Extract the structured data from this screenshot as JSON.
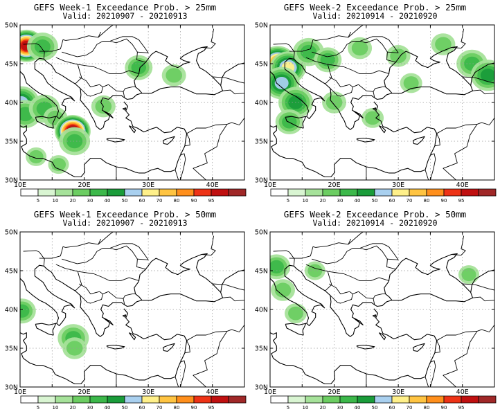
{
  "panels": [
    {
      "title": "GEFS Week-1 Exceedance Prob. > 25mm",
      "valid": "Valid: 20210907 - 20210913"
    },
    {
      "title": "GEFS Week-2 Exceedance Prob. > 25mm",
      "valid": "Valid: 20210914 - 20210920"
    },
    {
      "title": "GEFS Week-1 Exceedance Prob. > 50mm",
      "valid": "Valid: 20210907 - 20210913"
    },
    {
      "title": "GEFS Week-2 Exceedance Prob. > 50mm",
      "valid": "Valid: 20210914 - 20210920"
    }
  ],
  "axes": {
    "lat_labels": [
      "50N",
      "45N",
      "40N",
      "35N",
      "30N"
    ],
    "lon_labels": [
      "10E",
      "20E",
      "30E",
      "40E"
    ]
  },
  "colorbar": {
    "labels": [
      "5",
      "10",
      "20",
      "30",
      "40",
      "50",
      "60",
      "70",
      "80",
      "90",
      "95"
    ],
    "colors": [
      "#ffffff",
      "#d9f5d2",
      "#a6e29a",
      "#6ccd62",
      "#3cb84a",
      "#1a9c3a",
      "#a9d0ef",
      "#fff08a",
      "#ffc442",
      "#ff8f1c",
      "#ee3316",
      "#c01010",
      "#a02828"
    ]
  },
  "fields": [
    [
      {
        "lon": 10.2,
        "lat": 40.0,
        "v": 45
      },
      {
        "lon": 10.8,
        "lat": 38.5,
        "v": 25
      },
      {
        "lon": 13.8,
        "lat": 39.2,
        "v": 25
      },
      {
        "lon": 15.5,
        "lat": 38.0,
        "v": 15
      },
      {
        "lon": 18.2,
        "lat": 36.3,
        "v": 95
      },
      {
        "lon": 18.5,
        "lat": 35.0,
        "v": 25
      },
      {
        "lon": 11.0,
        "lat": 47.3,
        "v": 92
      },
      {
        "lon": 13.5,
        "lat": 47.2,
        "v": 25
      },
      {
        "lon": 28.5,
        "lat": 44.5,
        "v": 20
      },
      {
        "lon": 34.0,
        "lat": 43.5,
        "v": 15
      },
      {
        "lon": 23.0,
        "lat": 39.5,
        "v": 15
      },
      {
        "lon": 12.5,
        "lat": 33.0,
        "v": 10
      },
      {
        "lon": 16.0,
        "lat": 32.0,
        "v": 10
      }
    ],
    [
      {
        "lon": 11.2,
        "lat": 45.2,
        "v": 75
      },
      {
        "lon": 12.8,
        "lat": 44.5,
        "v": 55
      },
      {
        "lon": 11.8,
        "lat": 42.5,
        "v": 45
      },
      {
        "lon": 14.0,
        "lat": 40.0,
        "v": 30
      },
      {
        "lon": 13.0,
        "lat": 37.5,
        "v": 20
      },
      {
        "lon": 16.0,
        "lat": 46.5,
        "v": 25
      },
      {
        "lon": 19.0,
        "lat": 45.5,
        "v": 20
      },
      {
        "lon": 24.0,
        "lat": 47.0,
        "v": 15
      },
      {
        "lon": 30.0,
        "lat": 46.0,
        "v": 15
      },
      {
        "lon": 37.0,
        "lat": 47.5,
        "v": 15
      },
      {
        "lon": 41.5,
        "lat": 45.0,
        "v": 25
      },
      {
        "lon": 44.0,
        "lat": 43.5,
        "v": 30
      },
      {
        "lon": 20.0,
        "lat": 40.0,
        "v": 15
      },
      {
        "lon": 26.0,
        "lat": 38.0,
        "v": 12
      },
      {
        "lon": 32.0,
        "lat": 42.5,
        "v": 12
      }
    ],
    [
      {
        "lon": 10.3,
        "lat": 39.8,
        "v": 20
      },
      {
        "lon": 18.3,
        "lat": 36.3,
        "v": 25
      },
      {
        "lon": 18.5,
        "lat": 35.0,
        "v": 15
      }
    ],
    [
      {
        "lon": 11.0,
        "lat": 45.5,
        "v": 20
      },
      {
        "lon": 12.0,
        "lat": 42.5,
        "v": 15
      },
      {
        "lon": 14.0,
        "lat": 39.5,
        "v": 12
      },
      {
        "lon": 17.0,
        "lat": 45.0,
        "v": 10
      },
      {
        "lon": 41.0,
        "lat": 44.5,
        "v": 10
      }
    ]
  ]
}
